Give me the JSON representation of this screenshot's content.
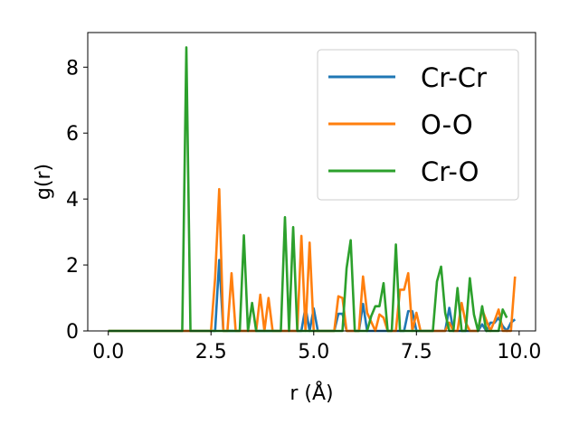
{
  "chart_data": {
    "type": "line",
    "xlabel": "r (Å)",
    "ylabel": "g(r)",
    "xlim": [
      -0.5,
      10.4
    ],
    "ylim": [
      0,
      9.05
    ],
    "xticks": [
      0.0,
      2.5,
      5.0,
      7.5,
      10.0
    ],
    "xtick_labels": [
      "0.0",
      "2.5",
      "5.0",
      "7.5",
      "10.0"
    ],
    "yticks": [
      0,
      2,
      4,
      6,
      8
    ],
    "ytick_labels": [
      "0",
      "2",
      "4",
      "6",
      "8"
    ],
    "grid": false,
    "legend_position": "top-right",
    "series": [
      {
        "name": "Cr-Cr",
        "color": "#1f77b4",
        "x": [
          0.0,
          2.5,
          2.6,
          2.7,
          2.8,
          4.7,
          4.8,
          4.9,
          5.0,
          5.1,
          5.5,
          5.6,
          5.7,
          5.8,
          6.1,
          6.2,
          6.3,
          7.2,
          7.3,
          7.4,
          7.5,
          8.2,
          8.3,
          8.4,
          9.0,
          9.1,
          9.2,
          9.3,
          9.4,
          9.5,
          9.6,
          9.7,
          9.8,
          9.9
        ],
        "y": [
          0.0,
          0.0,
          0.0,
          2.15,
          0.0,
          0.0,
          0.72,
          0.0,
          0.68,
          0.0,
          0.0,
          0.52,
          0.52,
          0.0,
          0.0,
          0.82,
          0.0,
          0.0,
          0.6,
          0.6,
          0.0,
          0.0,
          0.7,
          0.0,
          0.0,
          0.2,
          0.0,
          0.25,
          0.25,
          0.4,
          0.15,
          0.0,
          0.25,
          0.35
        ]
      },
      {
        "name": "O-O",
        "color": "#ff7f0e",
        "x": [
          0.0,
          2.5,
          2.6,
          2.7,
          2.8,
          2.9,
          3.0,
          3.1,
          3.6,
          3.7,
          3.8,
          3.9,
          4.0,
          4.1,
          4.6,
          4.7,
          4.8,
          4.9,
          5.0,
          5.5,
          5.6,
          5.7,
          5.8,
          6.1,
          6.2,
          6.3,
          6.5,
          6.6,
          6.7,
          6.8,
          7.0,
          7.1,
          7.2,
          7.3,
          7.4,
          7.5,
          7.6,
          7.7,
          8.2,
          8.3,
          8.4,
          8.5,
          8.6,
          8.7,
          8.8,
          9.0,
          9.1,
          9.3,
          9.4,
          9.5,
          9.6,
          9.7,
          9.8,
          9.9
        ],
        "y": [
          0.0,
          0.0,
          1.6,
          4.3,
          0.0,
          0.0,
          1.75,
          0.0,
          0.0,
          1.1,
          0.0,
          1.0,
          0.0,
          0.0,
          0.0,
          2.88,
          0.0,
          2.68,
          0.0,
          0.0,
          1.05,
          1.0,
          0.0,
          0.0,
          1.65,
          0.55,
          0.0,
          0.5,
          0.4,
          0.0,
          0.0,
          1.25,
          1.25,
          1.75,
          0.0,
          0.55,
          0.0,
          0.0,
          0.0,
          0.25,
          0.0,
          0.0,
          0.85,
          0.25,
          0.0,
          0.0,
          0.65,
          0.0,
          0.3,
          0.65,
          0.0,
          0.0,
          0.0,
          1.65
        ]
      },
      {
        "name": "Cr-O",
        "color": "#2ca02c",
        "x": [
          0.0,
          1.8,
          1.9,
          2.0,
          3.1,
          3.2,
          3.3,
          3.4,
          3.5,
          3.6,
          4.2,
          4.3,
          4.4,
          4.5,
          4.6,
          5.7,
          5.8,
          5.9,
          6.0,
          6.3,
          6.4,
          6.5,
          6.6,
          6.7,
          6.8,
          6.9,
          7.0,
          7.1,
          7.9,
          8.0,
          8.1,
          8.2,
          8.3,
          8.4,
          8.5,
          8.6,
          8.7,
          8.8,
          8.9,
          9.0,
          9.1,
          9.2,
          9.3,
          9.4,
          9.5,
          9.6,
          9.7
        ],
        "y": [
          0.0,
          0.0,
          8.6,
          0.0,
          0.0,
          0.0,
          2.9,
          0.0,
          0.85,
          0.0,
          0.0,
          3.45,
          0.0,
          3.15,
          0.0,
          0.0,
          1.9,
          2.75,
          0.0,
          0.0,
          0.45,
          0.75,
          0.75,
          1.45,
          0.0,
          0.0,
          2.62,
          0.0,
          0.0,
          1.5,
          1.95,
          0.55,
          0.0,
          0.0,
          1.3,
          0.0,
          0.0,
          1.6,
          0.5,
          0.0,
          0.75,
          0.0,
          0.0,
          0.0,
          0.0,
          0.65,
          0.4
        ]
      }
    ]
  }
}
